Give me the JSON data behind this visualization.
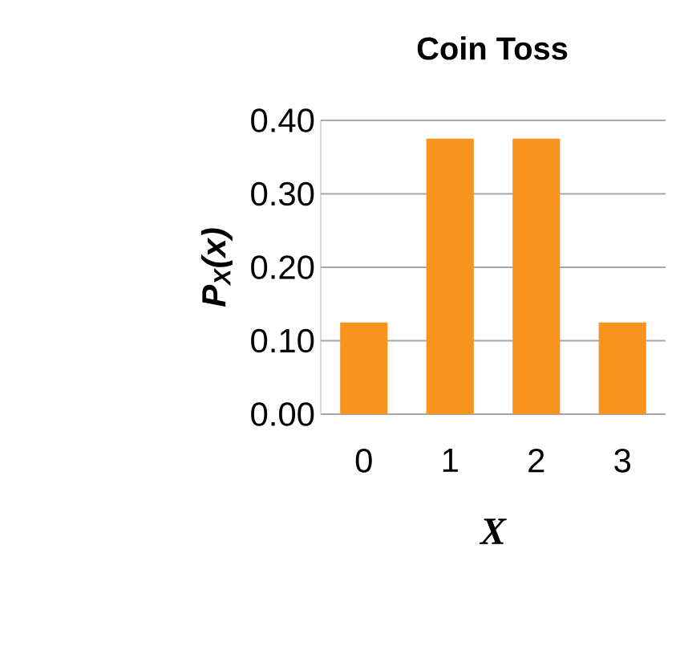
{
  "chart_data": {
    "type": "bar",
    "title": "Coin Toss",
    "xlabel": "X",
    "ylabel": "P$_{X}$(x)",
    "categories": [
      "0",
      "1",
      "2",
      "3"
    ],
    "values": [
      0.125,
      0.375,
      0.375,
      0.125
    ],
    "color": "#f7941d",
    "ylim": [
      0,
      0.4
    ],
    "yticks": [
      {
        "value": 0,
        "label": "0.00"
      },
      {
        "value": 0.1,
        "label": "0.10"
      },
      {
        "value": 0.2,
        "label": "0.20"
      },
      {
        "value": 0.3,
        "label": "0.30"
      },
      {
        "value": 0.4,
        "label": "0.40"
      }
    ],
    "grid": "y"
  }
}
